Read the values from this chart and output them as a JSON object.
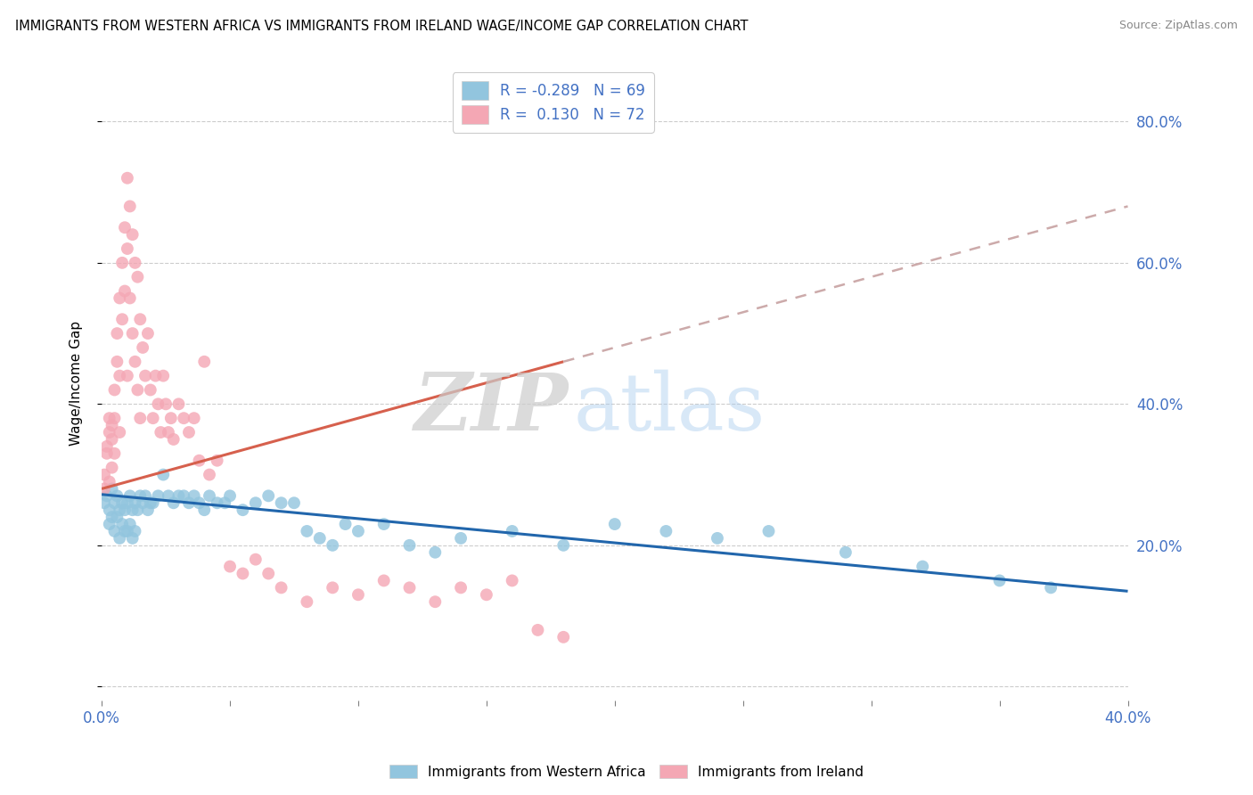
{
  "title": "IMMIGRANTS FROM WESTERN AFRICA VS IMMIGRANTS FROM IRELAND WAGE/INCOME GAP CORRELATION CHART",
  "source": "Source: ZipAtlas.com",
  "ylabel": "Wage/Income Gap",
  "legend_blue_R": "-0.289",
  "legend_blue_N": "69",
  "legend_pink_R": "0.130",
  "legend_pink_N": "72",
  "legend_blue_label": "Immigrants from Western Africa",
  "legend_pink_label": "Immigrants from Ireland",
  "watermark_zip": "ZIP",
  "watermark_atlas": "atlas",
  "blue_color": "#92c5de",
  "pink_color": "#f4a7b4",
  "blue_line_color": "#2166ac",
  "pink_line_color": "#d6604d",
  "background_color": "#ffffff",
  "grid_color": "#cccccc",
  "right_tick_color": "#4472C4",
  "xlim": [
    0.0,
    0.4
  ],
  "ylim": [
    -0.02,
    0.88
  ],
  "blue_x": [
    0.001,
    0.002,
    0.003,
    0.003,
    0.004,
    0.004,
    0.005,
    0.005,
    0.006,
    0.006,
    0.007,
    0.007,
    0.008,
    0.008,
    0.009,
    0.009,
    0.01,
    0.01,
    0.011,
    0.011,
    0.012,
    0.012,
    0.013,
    0.013,
    0.014,
    0.015,
    0.016,
    0.017,
    0.018,
    0.019,
    0.02,
    0.022,
    0.024,
    0.026,
    0.028,
    0.03,
    0.032,
    0.034,
    0.036,
    0.038,
    0.04,
    0.042,
    0.045,
    0.048,
    0.05,
    0.055,
    0.06,
    0.065,
    0.07,
    0.075,
    0.08,
    0.085,
    0.09,
    0.095,
    0.1,
    0.11,
    0.12,
    0.13,
    0.14,
    0.16,
    0.18,
    0.2,
    0.22,
    0.24,
    0.26,
    0.29,
    0.32,
    0.35,
    0.37
  ],
  "blue_y": [
    0.26,
    0.27,
    0.25,
    0.23,
    0.28,
    0.24,
    0.26,
    0.22,
    0.27,
    0.24,
    0.25,
    0.21,
    0.26,
    0.23,
    0.25,
    0.22,
    0.26,
    0.22,
    0.27,
    0.23,
    0.25,
    0.21,
    0.26,
    0.22,
    0.25,
    0.27,
    0.26,
    0.27,
    0.25,
    0.26,
    0.26,
    0.27,
    0.3,
    0.27,
    0.26,
    0.27,
    0.27,
    0.26,
    0.27,
    0.26,
    0.25,
    0.27,
    0.26,
    0.26,
    0.27,
    0.25,
    0.26,
    0.27,
    0.26,
    0.26,
    0.22,
    0.21,
    0.2,
    0.23,
    0.22,
    0.23,
    0.2,
    0.19,
    0.21,
    0.22,
    0.2,
    0.23,
    0.22,
    0.21,
    0.22,
    0.19,
    0.17,
    0.15,
    0.14
  ],
  "pink_x": [
    0.001,
    0.001,
    0.002,
    0.002,
    0.003,
    0.003,
    0.003,
    0.004,
    0.004,
    0.004,
    0.005,
    0.005,
    0.005,
    0.006,
    0.006,
    0.007,
    0.007,
    0.007,
    0.008,
    0.008,
    0.009,
    0.009,
    0.01,
    0.01,
    0.01,
    0.011,
    0.011,
    0.012,
    0.012,
    0.013,
    0.013,
    0.014,
    0.014,
    0.015,
    0.015,
    0.016,
    0.017,
    0.018,
    0.019,
    0.02,
    0.021,
    0.022,
    0.023,
    0.024,
    0.025,
    0.026,
    0.027,
    0.028,
    0.03,
    0.032,
    0.034,
    0.036,
    0.038,
    0.04,
    0.042,
    0.045,
    0.05,
    0.055,
    0.06,
    0.065,
    0.07,
    0.08,
    0.09,
    0.1,
    0.11,
    0.12,
    0.13,
    0.14,
    0.15,
    0.16,
    0.17,
    0.18
  ],
  "pink_y": [
    0.28,
    0.3,
    0.34,
    0.33,
    0.38,
    0.36,
    0.29,
    0.37,
    0.35,
    0.31,
    0.42,
    0.38,
    0.33,
    0.5,
    0.46,
    0.55,
    0.44,
    0.36,
    0.6,
    0.52,
    0.65,
    0.56,
    0.72,
    0.62,
    0.44,
    0.68,
    0.55,
    0.64,
    0.5,
    0.6,
    0.46,
    0.58,
    0.42,
    0.52,
    0.38,
    0.48,
    0.44,
    0.5,
    0.42,
    0.38,
    0.44,
    0.4,
    0.36,
    0.44,
    0.4,
    0.36,
    0.38,
    0.35,
    0.4,
    0.38,
    0.36,
    0.38,
    0.32,
    0.46,
    0.3,
    0.32,
    0.17,
    0.16,
    0.18,
    0.16,
    0.14,
    0.12,
    0.14,
    0.13,
    0.15,
    0.14,
    0.12,
    0.14,
    0.13,
    0.15,
    0.08,
    0.07
  ],
  "blue_line_x0": 0.0,
  "blue_line_x1": 0.4,
  "blue_line_y0": 0.272,
  "blue_line_y1": 0.135,
  "pink_line_solid_x0": 0.0,
  "pink_line_solid_x1": 0.18,
  "pink_line_solid_y0": 0.28,
  "pink_line_solid_y1": 0.46,
  "pink_line_dash_x0": 0.18,
  "pink_line_dash_x1": 0.4,
  "pink_line_dash_y0": 0.46,
  "pink_line_dash_y1": 0.68
}
